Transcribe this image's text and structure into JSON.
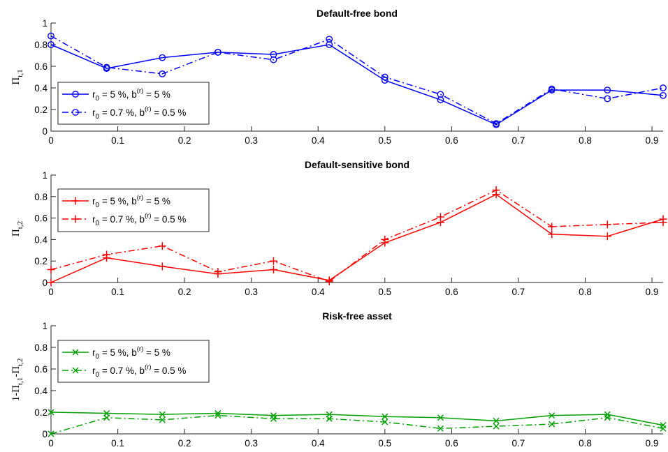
{
  "chart_data": [
    {
      "type": "line",
      "title": "Default-free bond",
      "ylabel": {
        "main": "Π",
        "sub": "t,1"
      },
      "xlim": [
        0,
        0.9167
      ],
      "ylim": [
        0,
        1
      ],
      "xticks": [
        "0",
        "0.1",
        "0.2",
        "0.3",
        "0.4",
        "0.5",
        "0.6",
        "0.7",
        "0.8",
        "0.9"
      ],
      "yticks": [
        "0",
        "0.2",
        "0.4",
        "0.6",
        "0.8",
        "1"
      ],
      "marker": "circle",
      "color": "#0000ff",
      "legend_position": "lower-left",
      "x": [
        0,
        0.0833,
        0.1667,
        0.25,
        0.3333,
        0.4167,
        0.5,
        0.5833,
        0.6667,
        0.75,
        0.8333,
        0.9167
      ],
      "series": [
        {
          "name": "r0 = 5 %, b(r) = 5 %",
          "r0": "5 %",
          "b": "5 %",
          "line_style": "solid",
          "values": [
            0.8,
            0.58,
            0.68,
            0.73,
            0.71,
            0.8,
            0.47,
            0.29,
            0.06,
            0.38,
            0.38,
            0.33
          ]
        },
        {
          "name": "r0 = 0.7 %, b(r) = 0.5 %",
          "r0": "0.7 %",
          "b": "0.5 %",
          "line_style": "dashdot",
          "values": [
            0.88,
            0.59,
            0.53,
            0.73,
            0.66,
            0.85,
            0.5,
            0.34,
            0.07,
            0.39,
            0.3,
            0.4
          ]
        }
      ]
    },
    {
      "type": "line",
      "title": "Default-sensitive bond",
      "ylabel": {
        "main": "Π",
        "sub": "t,2"
      },
      "xlim": [
        0,
        0.9167
      ],
      "ylim": [
        0,
        1
      ],
      "xticks": [
        "0",
        "0.1",
        "0.2",
        "0.3",
        "0.4",
        "0.5",
        "0.6",
        "0.7",
        "0.8",
        "0.9"
      ],
      "yticks": [
        "0",
        "0.2",
        "0.4",
        "0.6",
        "0.8",
        "1"
      ],
      "marker": "plus",
      "color": "#ff0000",
      "legend_position": "upper-left",
      "x": [
        0,
        0.0833,
        0.1667,
        0.25,
        0.3333,
        0.4167,
        0.5,
        0.5833,
        0.6667,
        0.75,
        0.8333,
        0.9167
      ],
      "series": [
        {
          "name": "r0 = 5 %, b(r) = 5 %",
          "r0": "5 %",
          "b": "5 %",
          "line_style": "solid",
          "values": [
            0.0,
            0.23,
            0.15,
            0.08,
            0.12,
            0.02,
            0.37,
            0.56,
            0.82,
            0.45,
            0.43,
            0.59
          ]
        },
        {
          "name": "r0 = 0.7 %, b(r) = 0.5 %",
          "r0": "0.7 %",
          "b": "0.5 %",
          "line_style": "dashdot",
          "values": [
            0.12,
            0.26,
            0.34,
            0.1,
            0.2,
            0.01,
            0.4,
            0.61,
            0.86,
            0.52,
            0.54,
            0.56
          ]
        }
      ]
    },
    {
      "type": "line",
      "title": "Risk-free asset",
      "ylabel": {
        "parts": [
          {
            "t": "1-Π"
          },
          {
            "t": "t,1",
            "s": "sub"
          },
          {
            "t": "-Π"
          },
          {
            "t": "t,2",
            "s": "sub"
          }
        ]
      },
      "xlim": [
        0,
        0.9167
      ],
      "ylim": [
        0,
        1
      ],
      "xticks": [
        "0",
        "0.1",
        "0.2",
        "0.3",
        "0.4",
        "0.5",
        "0.6",
        "0.7",
        "0.8",
        "0.9"
      ],
      "yticks": [
        "0",
        "0.2",
        "0.4",
        "0.6",
        "0.8",
        "1"
      ],
      "marker": "cross",
      "color": "#00a000",
      "legend_position": "upper-left",
      "x": [
        0,
        0.0833,
        0.1667,
        0.25,
        0.3333,
        0.4167,
        0.5,
        0.5833,
        0.6667,
        0.75,
        0.8333,
        0.9167
      ],
      "series": [
        {
          "name": "r0 = 5 %, b(r) = 5 %",
          "r0": "5 %",
          "b": "5 %",
          "line_style": "solid",
          "values": [
            0.2,
            0.19,
            0.18,
            0.19,
            0.17,
            0.18,
            0.16,
            0.15,
            0.12,
            0.17,
            0.18,
            0.08
          ]
        },
        {
          "name": "r0 = 0.7 %, b(r) = 0.5 %",
          "r0": "0.7 %",
          "b": "0.5 %",
          "line_style": "dashdot",
          "values": [
            0.0,
            0.15,
            0.13,
            0.17,
            0.14,
            0.14,
            0.11,
            0.05,
            0.07,
            0.09,
            0.15,
            0.05
          ]
        }
      ]
    }
  ]
}
